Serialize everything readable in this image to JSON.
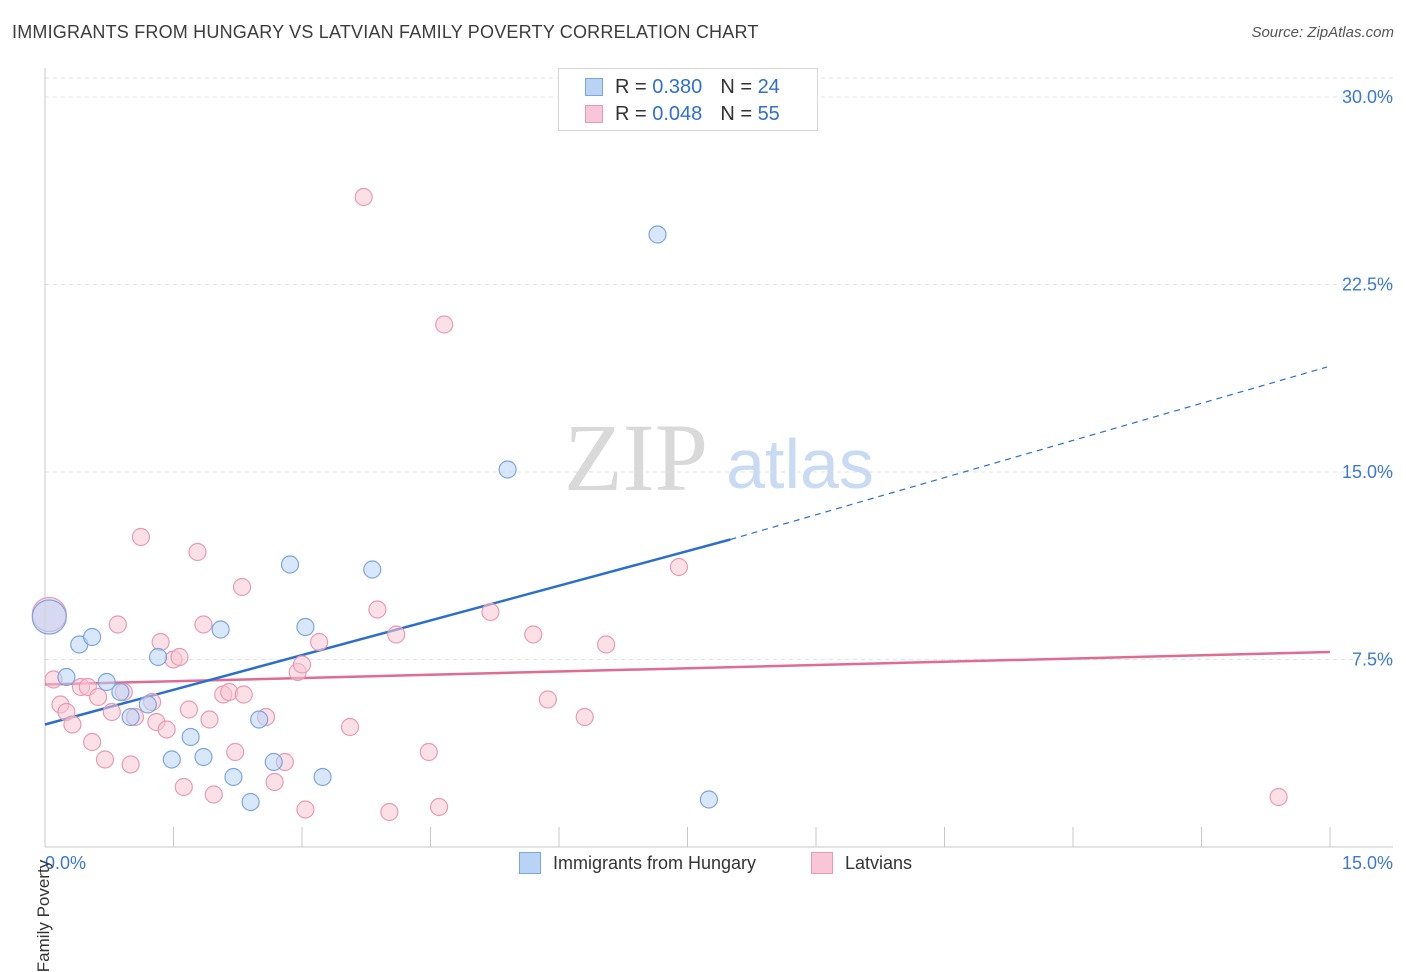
{
  "title": "IMMIGRANTS FROM HUNGARY VS LATVIAN FAMILY POVERTY CORRELATION CHART",
  "source": "Source: ZipAtlas.com",
  "watermark": {
    "zip": "ZIP",
    "atlas": "atlas"
  },
  "legend_top": [
    {
      "r_label": "R =",
      "r_value": "0.380",
      "n_label": "N =",
      "n_value": "24"
    },
    {
      "r_label": "R =",
      "r_value": "0.048",
      "n_label": "N =",
      "n_value": "55"
    }
  ],
  "legend_bottom": [
    {
      "label": "Immigrants from Hungary"
    },
    {
      "label": "Latvians"
    }
  ],
  "colors": {
    "blue_fill": "#b9d3f5",
    "blue_stroke": "#7aa6e0",
    "blue_line": "#2a6fcf",
    "pink_fill": "#f8c6d6",
    "pink_stroke": "#e99ab3",
    "pink_line": "#e06b93",
    "tick_label": "#3b78d4",
    "grid": "#e3e3e3"
  },
  "chart_data": {
    "type": "scatter",
    "title": "IMMIGRANTS FROM HUNGARY VS LATVIAN FAMILY POVERTY CORRELATION CHART",
    "xlabel": "",
    "ylabel": "Family Poverty",
    "xlim": [
      0,
      15
    ],
    "ylim": [
      0,
      31.5
    ],
    "x_tick_labels": [
      {
        "value": 0,
        "label": "0.0%"
      },
      {
        "value": 15,
        "label": "15.0%"
      }
    ],
    "y_tick_labels": [
      {
        "value": 7.5,
        "label": "7.5%"
      },
      {
        "value": 15,
        "label": "15.0%"
      },
      {
        "value": 22.5,
        "label": "22.5%"
      },
      {
        "value": 30,
        "label": "30.0%"
      }
    ],
    "series": [
      {
        "name": "Immigrants from Hungary",
        "r": 0.38,
        "n": 24,
        "trend": {
          "x": [
            0,
            8.0
          ],
          "y": [
            4.9,
            12.3
          ],
          "dashed_to": [
            15,
            19.2
          ]
        },
        "points": [
          {
            "x": 0.05,
            "y": 9.2,
            "big": true
          },
          {
            "x": 0.25,
            "y": 6.8
          },
          {
            "x": 0.4,
            "y": 8.1
          },
          {
            "x": 0.55,
            "y": 8.4
          },
          {
            "x": 0.72,
            "y": 6.6
          },
          {
            "x": 0.88,
            "y": 6.2
          },
          {
            "x": 1.0,
            "y": 5.2
          },
          {
            "x": 1.2,
            "y": 5.7
          },
          {
            "x": 1.32,
            "y": 7.6
          },
          {
            "x": 1.48,
            "y": 3.5
          },
          {
            "x": 1.7,
            "y": 4.4
          },
          {
            "x": 1.85,
            "y": 3.6
          },
          {
            "x": 2.05,
            "y": 8.7
          },
          {
            "x": 2.2,
            "y": 2.8
          },
          {
            "x": 2.4,
            "y": 1.8
          },
          {
            "x": 2.5,
            "y": 5.1
          },
          {
            "x": 2.67,
            "y": 3.4
          },
          {
            "x": 2.86,
            "y": 11.3
          },
          {
            "x": 3.04,
            "y": 8.8
          },
          {
            "x": 3.24,
            "y": 2.8
          },
          {
            "x": 3.82,
            "y": 11.1
          },
          {
            "x": 5.4,
            "y": 15.1
          },
          {
            "x": 7.15,
            "y": 24.5
          },
          {
            "x": 7.75,
            "y": 1.9
          }
        ]
      },
      {
        "name": "Latvians",
        "r": 0.048,
        "n": 55,
        "trend": {
          "x": [
            0,
            15
          ],
          "y": [
            6.5,
            7.8
          ]
        },
        "points": [
          {
            "x": 0.05,
            "y": 9.3,
            "big": true
          },
          {
            "x": 0.1,
            "y": 6.7
          },
          {
            "x": 0.18,
            "y": 5.7
          },
          {
            "x": 0.25,
            "y": 5.4
          },
          {
            "x": 0.32,
            "y": 4.9
          },
          {
            "x": 0.42,
            "y": 6.4
          },
          {
            "x": 0.5,
            "y": 6.4
          },
          {
            "x": 0.55,
            "y": 4.2
          },
          {
            "x": 0.62,
            "y": 6.0
          },
          {
            "x": 0.7,
            "y": 3.5
          },
          {
            "x": 0.78,
            "y": 5.4
          },
          {
            "x": 0.85,
            "y": 8.9
          },
          {
            "x": 0.92,
            "y": 6.2
          },
          {
            "x": 1.0,
            "y": 3.3
          },
          {
            "x": 1.05,
            "y": 5.2
          },
          {
            "x": 1.12,
            "y": 12.4
          },
          {
            "x": 1.25,
            "y": 5.8
          },
          {
            "x": 1.3,
            "y": 5.0
          },
          {
            "x": 1.35,
            "y": 8.2
          },
          {
            "x": 1.42,
            "y": 4.7
          },
          {
            "x": 1.5,
            "y": 7.5
          },
          {
            "x": 1.57,
            "y": 7.6
          },
          {
            "x": 1.62,
            "y": 2.4
          },
          {
            "x": 1.68,
            "y": 5.5
          },
          {
            "x": 1.78,
            "y": 11.8
          },
          {
            "x": 1.85,
            "y": 8.9
          },
          {
            "x": 1.92,
            "y": 5.1
          },
          {
            "x": 1.97,
            "y": 2.1
          },
          {
            "x": 2.08,
            "y": 6.1
          },
          {
            "x": 2.15,
            "y": 6.2
          },
          {
            "x": 2.22,
            "y": 3.8
          },
          {
            "x": 2.3,
            "y": 10.4
          },
          {
            "x": 2.32,
            "y": 6.1
          },
          {
            "x": 2.58,
            "y": 5.2
          },
          {
            "x": 2.68,
            "y": 2.6
          },
          {
            "x": 2.8,
            "y": 3.4
          },
          {
            "x": 2.95,
            "y": 7.0
          },
          {
            "x": 3.0,
            "y": 7.3
          },
          {
            "x": 3.04,
            "y": 1.5
          },
          {
            "x": 3.2,
            "y": 8.2
          },
          {
            "x": 3.56,
            "y": 4.8
          },
          {
            "x": 3.72,
            "y": 26.0
          },
          {
            "x": 3.88,
            "y": 9.5
          },
          {
            "x": 4.02,
            "y": 1.4
          },
          {
            "x": 4.1,
            "y": 8.5
          },
          {
            "x": 4.48,
            "y": 3.8
          },
          {
            "x": 4.6,
            "y": 1.6
          },
          {
            "x": 4.66,
            "y": 20.9
          },
          {
            "x": 5.2,
            "y": 9.4
          },
          {
            "x": 5.7,
            "y": 8.5
          },
          {
            "x": 5.87,
            "y": 5.9
          },
          {
            "x": 6.3,
            "y": 5.2
          },
          {
            "x": 6.55,
            "y": 8.1
          },
          {
            "x": 7.4,
            "y": 11.2
          },
          {
            "x": 14.4,
            "y": 2.0
          }
        ]
      }
    ]
  }
}
